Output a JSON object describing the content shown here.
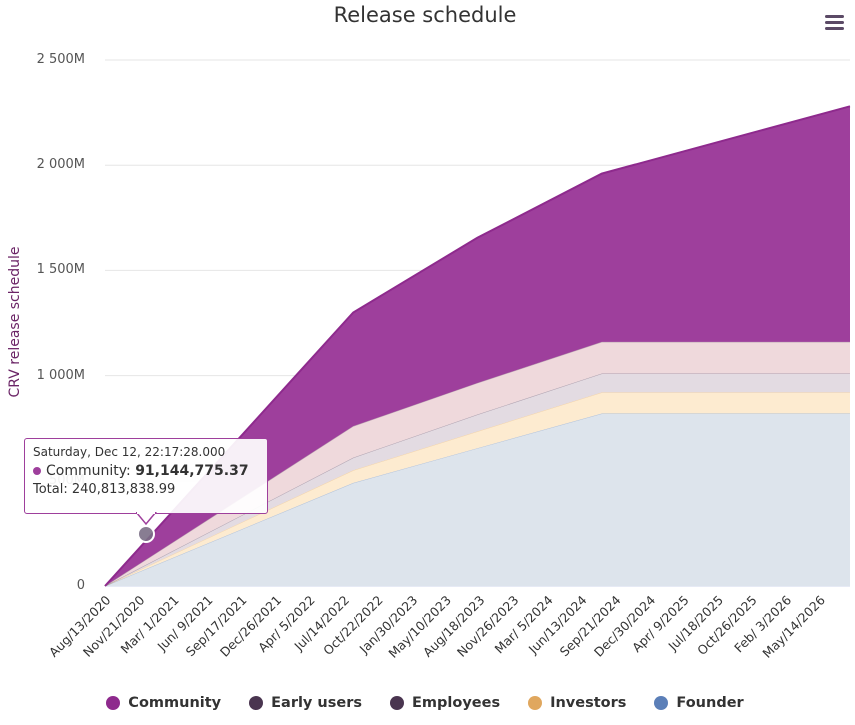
{
  "chart_data": {
    "type": "area",
    "stacked": true,
    "title": "Release schedule",
    "ylabel": "CRV release schedule",
    "ylim": [
      0,
      2500000000
    ],
    "y_ticks": [
      {
        "value": 0,
        "label": "0"
      },
      {
        "value": 500000000,
        "label": "500M"
      },
      {
        "value": 1000000000,
        "label": "1 000M"
      },
      {
        "value": 1500000000,
        "label": "1 500M"
      },
      {
        "value": 2000000000,
        "label": "2 000M"
      },
      {
        "value": 2500000000,
        "label": "2 500M"
      }
    ],
    "x_range": [
      "2020-08-13",
      "2026-08-13"
    ],
    "x_ticks": [
      {
        "date": "2020-08-13",
        "label": "Aug/13/2020"
      },
      {
        "date": "2020-11-21",
        "label": "Nov/21/2020"
      },
      {
        "date": "2021-03-01",
        "label": "Mar/ 1/2021"
      },
      {
        "date": "2021-06-09",
        "label": "Jun/ 9/2021"
      },
      {
        "date": "2021-09-17",
        "label": "Sep/17/2021"
      },
      {
        "date": "2021-12-26",
        "label": "Dec/26/2021"
      },
      {
        "date": "2022-04-05",
        "label": "Apr/ 5/2022"
      },
      {
        "date": "2022-07-14",
        "label": "Jul/14/2022"
      },
      {
        "date": "2022-10-22",
        "label": "Oct/22/2022"
      },
      {
        "date": "2023-01-30",
        "label": "Jan/30/2023"
      },
      {
        "date": "2023-05-10",
        "label": "May/10/2023"
      },
      {
        "date": "2023-08-18",
        "label": "Aug/18/2023"
      },
      {
        "date": "2023-11-26",
        "label": "Nov/26/2023"
      },
      {
        "date": "2024-03-05",
        "label": "Mar/ 5/2024"
      },
      {
        "date": "2024-06-13",
        "label": "Jun/13/2024"
      },
      {
        "date": "2024-09-21",
        "label": "Sep/21/2024"
      },
      {
        "date": "2024-12-30",
        "label": "Dec/30/2024"
      },
      {
        "date": "2025-04-09",
        "label": "Apr/ 9/2025"
      },
      {
        "date": "2025-07-18",
        "label": "Jul/18/2025"
      },
      {
        "date": "2025-10-26",
        "label": "Oct/26/2025"
      },
      {
        "date": "2026-02-03",
        "label": "Feb/ 3/2026"
      },
      {
        "date": "2026-05-14",
        "label": "May/14/2026"
      }
    ],
    "x": [
      "2020-08-13",
      "2022-08-13",
      "2023-08-13",
      "2024-08-13",
      "2025-08-13",
      "2026-08-13"
    ],
    "series": [
      {
        "name": "Founder",
        "color": "#5b7fb8",
        "fill": "#dde4ec",
        "values": [
          0,
          490000000,
          655000000,
          820000000,
          820000000,
          820000000
        ]
      },
      {
        "name": "Investors",
        "color": "#e0a75e",
        "fill": "#fdebd0",
        "values": [
          0,
          60000000,
          80000000,
          100000000,
          100000000,
          100000000
        ]
      },
      {
        "name": "Employees",
        "color": "#4a3550",
        "fill": "#e3dbe2",
        "values": [
          0,
          60000000,
          80000000,
          90000000,
          90000000,
          90000000
        ]
      },
      {
        "name": "Early users",
        "color": "#4a3550",
        "fill": "#efd9dc",
        "values": [
          0,
          150000000,
          150000000,
          150000000,
          150000000,
          150000000
        ]
      },
      {
        "name": "Community",
        "color": "#8e2a8d",
        "fill": "#9e3f9c",
        "values": [
          0,
          540000000,
          690000000,
          800000000,
          960000000,
          1120000000
        ]
      }
    ],
    "legend_position": "bottom",
    "grid": true
  },
  "tooltip": {
    "date": "Saturday, Dec 12, 22:17:28.000",
    "series": "Community",
    "value": "91,144,775.37",
    "total_label": "Total:",
    "total": "240,813,838.99"
  }
}
